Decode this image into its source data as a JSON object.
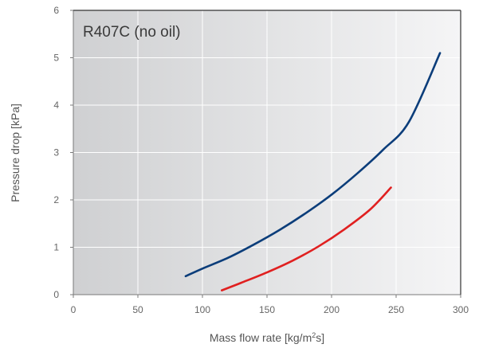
{
  "chart_data": {
    "type": "line",
    "annotation": "R407C (no oil)",
    "xlabel_prefix": "Mass flow rate [kg/m",
    "xlabel_sup": "2",
    "xlabel_suffix": "s]",
    "ylabel": "Pressure drop [kPa]",
    "xlim": [
      0,
      300
    ],
    "ylim": [
      0,
      6
    ],
    "x_ticks": [
      0,
      50,
      100,
      150,
      200,
      250,
      300
    ],
    "y_ticks": [
      0,
      1,
      2,
      3,
      4,
      5,
      6
    ],
    "grid": true,
    "series": [
      {
        "color": "#0b3d7a",
        "x": [
          87,
          100,
          120,
          140,
          160,
          180,
          200,
          220,
          240,
          260,
          284
        ],
        "y": [
          0.39,
          0.55,
          0.78,
          1.06,
          1.37,
          1.72,
          2.11,
          2.56,
          3.06,
          3.65,
          5.1
        ]
      },
      {
        "color": "#e02020",
        "x": [
          115,
          130,
          150,
          170,
          190,
          210,
          230,
          246
        ],
        "y": [
          0.09,
          0.25,
          0.47,
          0.72,
          1.02,
          1.38,
          1.8,
          2.26
        ]
      }
    ]
  }
}
